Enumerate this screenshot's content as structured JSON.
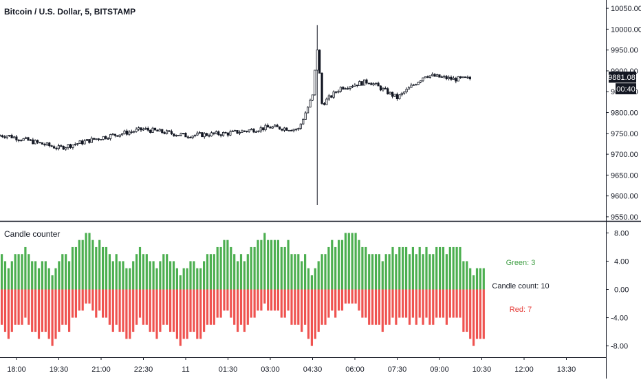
{
  "chart_data": [
    {
      "type": "candlestick",
      "title": "Bitcoin / U.S. Dollar, 5, BITSTAMP",
      "ylim": [
        9540,
        10070
      ],
      "y_ticks": [
        "10050.00",
        "10000.00",
        "9950.00",
        "9900.00",
        "9850.00",
        "9800.00",
        "9750.00",
        "9700.00",
        "9650.00",
        "9600.00",
        "9550.00"
      ],
      "y_tick_values": [
        10050,
        10000,
        9950,
        9900,
        9850,
        9800,
        9750,
        9700,
        9650,
        9600,
        9550
      ],
      "last_price": "9881.08",
      "countdown": "00:40",
      "key_points": [
        {
          "time": "17:40",
          "price": 9745
        },
        {
          "time": "19:30",
          "price": 9715
        },
        {
          "time": "21:00",
          "price": 9740
        },
        {
          "time": "22:30",
          "price": 9760
        },
        {
          "time": "11",
          "price": 9745
        },
        {
          "time": "01:30",
          "price": 9750
        },
        {
          "time": "03:00",
          "price": 9765
        },
        {
          "time": "04:00",
          "price": 9760
        },
        {
          "time": "04:30",
          "price": 9840
        },
        {
          "time": "04:40",
          "price": 9960
        },
        {
          "time": "04:50",
          "price": 9820
        },
        {
          "time": "05:30",
          "price": 9860
        },
        {
          "time": "06:30",
          "price": 9875
        },
        {
          "time": "07:30",
          "price": 9835
        },
        {
          "time": "08:30",
          "price": 9890
        },
        {
          "time": "09:30",
          "price": 9880
        },
        {
          "time": "10:05",
          "price": 9881
        }
      ],
      "wick_extremes": {
        "high": 10010,
        "low": 9578
      }
    },
    {
      "type": "bar",
      "title": "Candle counter",
      "ylim": [
        -9.6,
        9.6
      ],
      "y_ticks": [
        "8.00",
        "4.00",
        "0.00",
        "-4.00",
        "-8.00"
      ],
      "y_tick_values": [
        8,
        4,
        0,
        -4,
        -8
      ],
      "series": [
        {
          "name": "Green",
          "color": "#4caf50"
        },
        {
          "name": "Red",
          "color": "#ef5350"
        }
      ],
      "green_values": [
        5,
        4,
        3,
        4,
        5,
        5,
        5,
        6,
        5,
        4,
        4,
        3,
        4,
        4,
        3,
        2,
        3,
        4,
        5,
        5,
        4,
        6,
        6,
        7,
        7,
        8,
        8,
        7,
        6,
        7,
        6,
        6,
        5,
        4,
        5,
        4,
        4,
        3,
        3,
        4,
        5,
        6,
        5,
        5,
        4,
        4,
        3,
        4,
        5,
        5,
        4,
        4,
        3,
        2,
        3,
        3,
        4,
        4,
        3,
        3,
        4,
        5,
        5,
        5,
        6,
        6,
        7,
        7,
        6,
        5,
        4,
        5,
        4,
        5,
        6,
        6,
        7,
        7,
        8,
        7,
        7,
        7,
        7,
        6,
        6,
        7,
        5,
        5,
        5,
        4,
        5,
        3,
        2,
        3,
        4,
        5,
        5,
        6,
        7,
        6,
        7,
        7,
        8,
        8,
        8,
        8,
        7,
        6,
        6,
        5,
        5,
        5,
        5,
        4,
        5,
        5,
        6,
        5,
        6,
        6,
        6,
        5,
        6,
        5,
        6,
        5,
        6,
        5,
        5,
        6,
        6,
        6,
        5,
        6,
        6,
        6,
        6,
        4,
        4,
        3,
        2,
        3,
        3,
        3
      ]
    }
  ],
  "x_axis": {
    "ticks": [
      "18:00",
      "19:30",
      "21:00",
      "22:30",
      "11",
      "01:30",
      "03:00",
      "04:30",
      "06:00",
      "07:30",
      "09:00",
      "10:30",
      "12:00",
      "13:30"
    ]
  },
  "counter_labels": {
    "green": "Green: 3",
    "total": "Candle count: 10",
    "red": "Red: 7"
  },
  "colors": {
    "green": "#4caf50",
    "red": "#ef5350",
    "green_label": "#43a047",
    "red_label": "#e53935",
    "candle": "#131722",
    "axis_text": "#131722"
  }
}
